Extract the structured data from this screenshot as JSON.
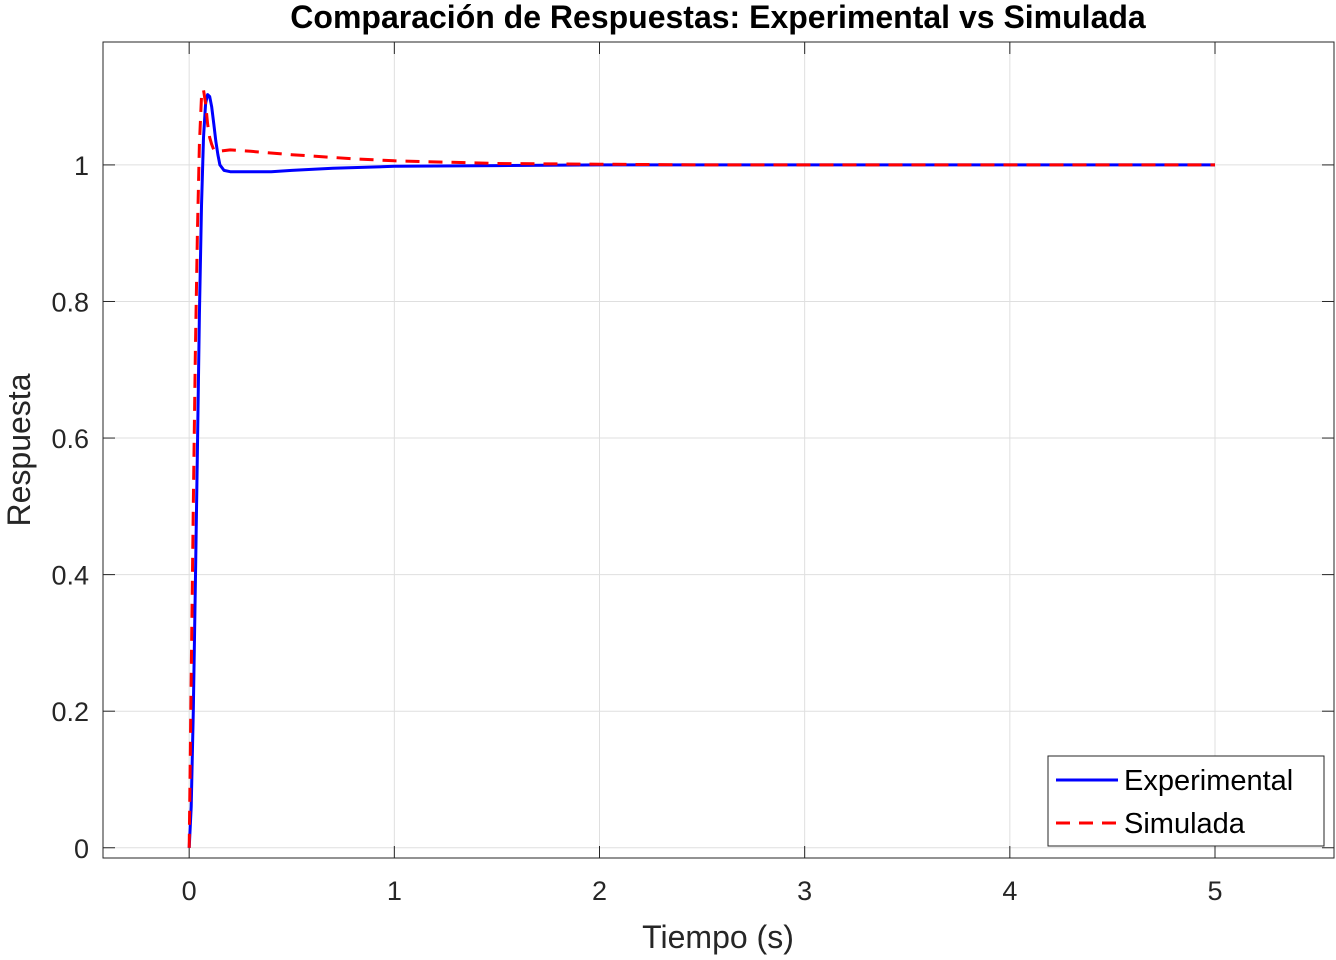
{
  "chart_data": {
    "type": "line",
    "title": "Comparación de Respuestas: Experimental vs Simulada",
    "xlabel": "Tiempo (s)",
    "ylabel": "Respuesta",
    "xlim": [
      -0.42,
      5.58
    ],
    "ylim": [
      -0.015,
      1.18
    ],
    "xticks": [
      0,
      1,
      2,
      3,
      4,
      5
    ],
    "xtick_labels": [
      "0",
      "1",
      "2",
      "3",
      "4",
      "5"
    ],
    "yticks": [
      0,
      0.2,
      0.4,
      0.6,
      0.8,
      1
    ],
    "ytick_labels": [
      "0",
      "0.2",
      "0.4",
      "0.6",
      "0.8",
      "1"
    ],
    "grid": true,
    "legend_position": "bottom-right",
    "series": [
      {
        "name": "Experimental",
        "color": "#0000ff",
        "style": "solid",
        "x": [
          0,
          0.01,
          0.02,
          0.03,
          0.04,
          0.05,
          0.06,
          0.07,
          0.08,
          0.09,
          0.1,
          0.11,
          0.12,
          0.13,
          0.14,
          0.15,
          0.17,
          0.2,
          0.25,
          0.3,
          0.4,
          0.5,
          0.7,
          1.0,
          1.5,
          2.0,
          3.0,
          4.0,
          5.0
        ],
        "y": [
          0,
          0.06,
          0.2,
          0.38,
          0.58,
          0.78,
          0.94,
          1.04,
          1.09,
          1.103,
          1.1,
          1.085,
          1.06,
          1.035,
          1.015,
          1.0,
          0.992,
          0.99,
          0.99,
          0.99,
          0.99,
          0.992,
          0.995,
          0.998,
          0.999,
          1.0,
          1.0,
          1.0,
          1.0
        ]
      },
      {
        "name": "Simulada",
        "color": "#ff0000",
        "style": "dashed",
        "x": [
          0,
          0.01,
          0.02,
          0.03,
          0.04,
          0.05,
          0.06,
          0.07,
          0.08,
          0.09,
          0.1,
          0.11,
          0.12,
          0.14,
          0.2,
          0.3,
          0.5,
          0.8,
          1.0,
          1.5,
          2.0,
          2.5,
          3.0,
          4.0,
          5.0
        ],
        "y": [
          0,
          0.25,
          0.5,
          0.72,
          0.9,
          1.03,
          1.1,
          1.11,
          1.09,
          1.06,
          1.04,
          1.03,
          1.022,
          1.02,
          1.022,
          1.02,
          1.015,
          1.009,
          1.006,
          1.002,
          1.001,
          1.0,
          1.0,
          1.0,
          1.0
        ]
      }
    ]
  }
}
